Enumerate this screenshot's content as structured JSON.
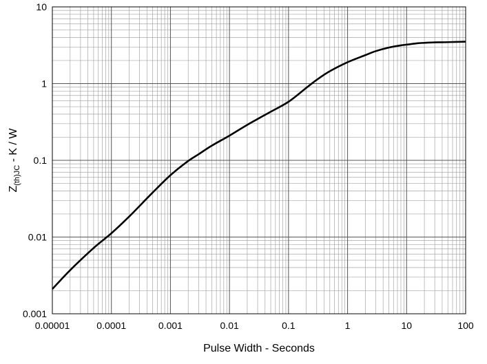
{
  "chart_data": {
    "type": "line",
    "title": "",
    "xlabel": "Pulse Width - Seconds",
    "ylabel_main": "Z",
    "ylabel_sub": "(th)JC",
    "ylabel_tail": " - K / W",
    "x_scale": "log",
    "y_scale": "log",
    "xlim": [
      1e-05,
      100
    ],
    "ylim": [
      0.001,
      10
    ],
    "grid": true,
    "x_ticks": [
      1e-05,
      0.0001,
      0.001,
      0.01,
      0.1,
      1,
      10,
      100
    ],
    "x_tick_labels": [
      "0.00001",
      "0.0001",
      "0.001",
      "0.01",
      "0.1",
      "1",
      "10",
      "100"
    ],
    "y_ticks": [
      0.001,
      0.01,
      0.1,
      1,
      10
    ],
    "y_tick_labels": [
      "0.001",
      "0.01",
      "0.1",
      "1",
      "10"
    ],
    "line_color": "#000000",
    "grid_color": "#a6a6a6",
    "series": [
      {
        "x": [
          1e-05,
          2e-05,
          5e-05,
          0.0001,
          0.0002,
          0.0005,
          0.001,
          0.002,
          0.003,
          0.005,
          0.01,
          0.02,
          0.05,
          0.1,
          0.2,
          0.3,
          0.5,
          1,
          2,
          3,
          5,
          8,
          10,
          15,
          20,
          30,
          50,
          100
        ],
        "y": [
          0.0021,
          0.0037,
          0.0072,
          0.0112,
          0.0185,
          0.038,
          0.064,
          0.098,
          0.12,
          0.155,
          0.21,
          0.29,
          0.43,
          0.58,
          0.88,
          1.12,
          1.45,
          1.9,
          2.35,
          2.65,
          2.95,
          3.15,
          3.22,
          3.35,
          3.4,
          3.45,
          3.47,
          3.52
        ]
      }
    ]
  }
}
